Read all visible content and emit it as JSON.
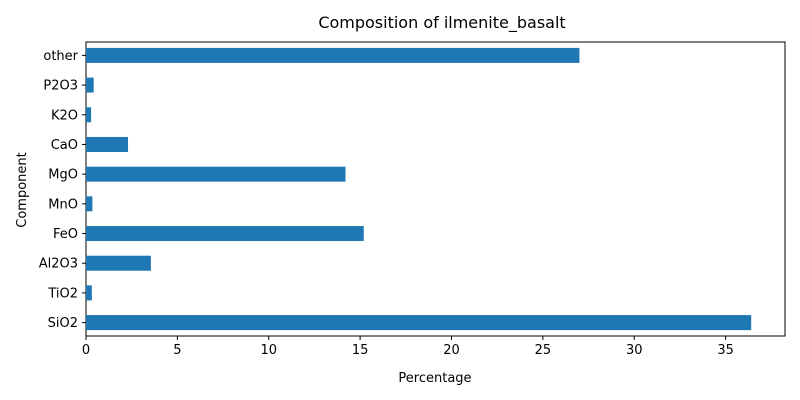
{
  "chart_data": {
    "type": "bar",
    "orientation": "horizontal",
    "title": "Composition of ilmenite_basalt",
    "xlabel": "Percentage",
    "ylabel": "Component",
    "categories": [
      "SiO2",
      "TiO2",
      "Al2O3",
      "FeO",
      "MnO",
      "MgO",
      "CaO",
      "K2O",
      "P2O3",
      "other"
    ],
    "values": [
      36.4,
      0.32,
      3.55,
      15.2,
      0.35,
      14.2,
      2.3,
      0.28,
      0.42,
      27.0
    ],
    "xlim": [
      0,
      38.25
    ],
    "xticks": [
      0,
      5,
      10,
      15,
      20,
      25,
      30,
      35
    ],
    "bar_color": "#1f77b4",
    "grid": false,
    "legend": "none"
  }
}
